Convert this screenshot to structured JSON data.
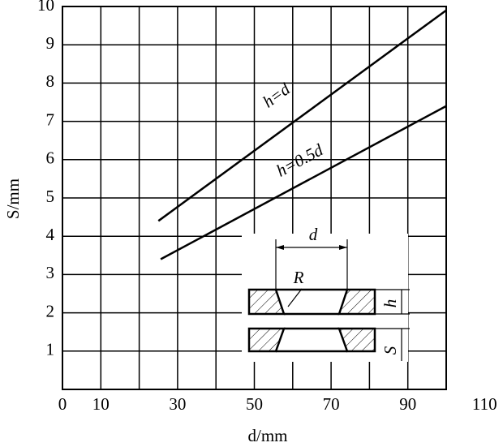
{
  "chart_data": {
    "type": "line",
    "xlabel": "d/mm",
    "ylabel": "S/mm",
    "xlim": [
      0,
      100
    ],
    "xticks": [
      0,
      10,
      30,
      50,
      70,
      90,
      110
    ],
    "ylim": [
      0,
      10
    ],
    "yticks": [
      1,
      2,
      3,
      4,
      5,
      6,
      7,
      8,
      9,
      10
    ],
    "grid": true,
    "series": [
      {
        "name": "h=d",
        "color": "#000000",
        "x": [
          25,
          100
        ],
        "values": [
          4.4,
          9.9
        ]
      },
      {
        "name": "h=0.5d",
        "color": "#000000",
        "x": [
          25.6,
          100
        ],
        "values": [
          3.4,
          7.4
        ]
      }
    ]
  },
  "inset": {
    "d_label": "d",
    "r_label": "R",
    "h_label": "h",
    "s_label": "S"
  }
}
